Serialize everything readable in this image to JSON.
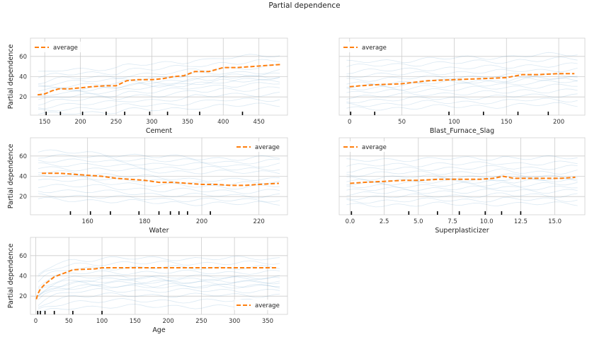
{
  "chart_data": {
    "type": "line",
    "title": "Partial dependence",
    "panels": [
      {
        "id": "cement",
        "xlabel": "Cement",
        "ylabel": "Partial dependence",
        "xlim": [
          130,
          490
        ],
        "ylim": [
          2,
          78
        ],
        "xticks": [
          150,
          200,
          250,
          300,
          350,
          400,
          450
        ],
        "xtick_labels": [
          "150",
          "200",
          "250",
          "300",
          "350",
          "400",
          "450"
        ],
        "yticks": [
          20,
          40,
          60
        ],
        "ytick_labels": [
          "20",
          "40",
          "60"
        ],
        "legend": "top-left",
        "legend_label": "average",
        "average": {
          "x": [
            140,
            150,
            160,
            170,
            185,
            200,
            215,
            235,
            250,
            265,
            280,
            300,
            315,
            330,
            345,
            360,
            380,
            400,
            420,
            440,
            460,
            480
          ],
          "y": [
            22,
            23,
            26,
            28,
            28,
            29,
            30,
            31,
            31,
            36,
            37,
            37,
            38,
            40,
            41,
            45,
            45,
            49,
            49,
            50,
            51,
            52
          ]
        },
        "ice_offsets": [
          -20,
          -16,
          -12,
          -8,
          -5,
          -2,
          1,
          4,
          7,
          10,
          13,
          17,
          21
        ],
        "rug": [
          152,
          172,
          203,
          236,
          262,
          297,
          322,
          367,
          427
        ]
      },
      {
        "id": "slag",
        "xlabel": "Blast_Furnace_Slag",
        "ylabel": "",
        "xlim": [
          -10,
          225
        ],
        "ylim": [
          2,
          78
        ],
        "xticks": [
          0,
          50,
          100,
          150,
          200
        ],
        "xtick_labels": [
          "0",
          "50",
          "100",
          "150",
          "200"
        ],
        "yticks": [
          20,
          40,
          60
        ],
        "ytick_labels": [
          "",
          "",
          ""
        ],
        "legend": "top-left",
        "legend_label": "average",
        "average": {
          "x": [
            0,
            10,
            25,
            50,
            75,
            100,
            125,
            150,
            165,
            180,
            200,
            215
          ],
          "y": [
            30,
            31,
            32,
            33,
            36,
            37,
            38,
            39,
            42,
            42,
            43,
            43
          ]
        },
        "ice_offsets": [
          -22,
          -18,
          -14,
          -10,
          -6,
          -3,
          0,
          3,
          7,
          11,
          15,
          20,
          24
        ],
        "rug": [
          1,
          24,
          95,
          128,
          161,
          190
        ]
      },
      {
        "id": "water",
        "xlabel": "Water",
        "ylabel": "Partial dependence",
        "xlim": [
          140,
          230
        ],
        "ylim": [
          2,
          78
        ],
        "xticks": [
          160,
          180,
          200,
          220
        ],
        "xtick_labels": [
          "160",
          "180",
          "200",
          "220"
        ],
        "yticks": [
          20,
          40,
          60
        ],
        "ytick_labels": [
          "20",
          "40",
          "60"
        ],
        "legend": "top-right",
        "legend_label": "average",
        "average": {
          "x": [
            144,
            150,
            155,
            160,
            165,
            170,
            175,
            180,
            185,
            190,
            195,
            200,
            205,
            210,
            215,
            220,
            227
          ],
          "y": [
            43,
            43,
            42,
            41,
            40,
            38,
            37,
            36,
            34,
            34,
            33,
            32,
            32,
            31,
            31,
            32,
            33
          ]
        },
        "ice_offsets": [
          -26,
          -22,
          -17,
          -12,
          -7,
          -3,
          1,
          5,
          9,
          13,
          17,
          21
        ],
        "rug": [
          154,
          161,
          168,
          178,
          185,
          189,
          192,
          195,
          203
        ]
      },
      {
        "id": "superplasticizer",
        "xlabel": "Superplasticizer",
        "ylabel": "",
        "xlim": [
          -0.8,
          17.2
        ],
        "ylim": [
          2,
          78
        ],
        "xticks": [
          0,
          2.5,
          5,
          7.5,
          10,
          12.5,
          15
        ],
        "xtick_labels": [
          "0.0",
          "2.5",
          "5.0",
          "7.5",
          "10.0",
          "12.5",
          "15.0"
        ],
        "yticks": [
          20,
          40,
          60
        ],
        "ytick_labels": [
          "",
          "",
          ""
        ],
        "legend": "top-left",
        "legend_label": "average",
        "average": {
          "x": [
            0,
            1,
            2.5,
            4,
            5,
            6.5,
            8,
            9.5,
            10.5,
            11.2,
            12,
            13,
            14,
            15.5,
            16.5
          ],
          "y": [
            33,
            34,
            35,
            36,
            36,
            37,
            37,
            37,
            38,
            40,
            38,
            38,
            38,
            38,
            39
          ]
        },
        "ice_offsets": [
          -22,
          -18,
          -14,
          -10,
          -7,
          -4,
          -1,
          2,
          5,
          9,
          13,
          17,
          22
        ],
        "rug": [
          0.1,
          4.3,
          6.4,
          8,
          9.9,
          11.1,
          12.5
        ]
      },
      {
        "id": "age",
        "xlabel": "Age",
        "ylabel": "Partial dependence",
        "xlim": [
          -8,
          380
        ],
        "ylim": [
          2,
          78
        ],
        "xticks": [
          0,
          50,
          100,
          150,
          200,
          250,
          300,
          350
        ],
        "xtick_labels": [
          "0",
          "50",
          "100",
          "150",
          "200",
          "250",
          "300",
          "350"
        ],
        "yticks": [
          20,
          40,
          60
        ],
        "ytick_labels": [
          "20",
          "40",
          "60"
        ],
        "legend": "bottom-right",
        "legend_label": "average",
        "average": {
          "x": [
            1,
            3,
            7,
            14,
            28,
            56,
            90,
            100,
            150,
            200,
            250,
            300,
            365
          ],
          "y": [
            17,
            22,
            27,
            32,
            39,
            46,
            47,
            48,
            48,
            48,
            48,
            48,
            48
          ]
        },
        "ice_offsets": [
          -18,
          -14,
          -10,
          -7,
          -4,
          -2,
          0,
          2,
          5,
          8,
          11,
          14,
          17,
          20
        ],
        "rug": [
          3,
          7,
          14,
          28,
          56,
          100
        ]
      }
    ]
  }
}
